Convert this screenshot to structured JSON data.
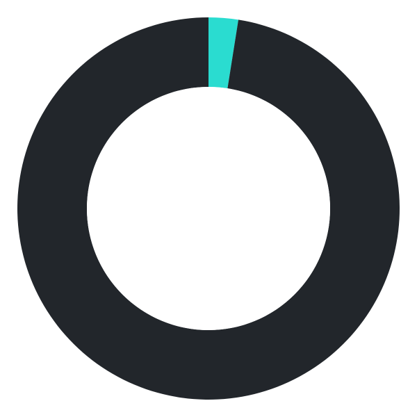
{
  "chart_data": {
    "type": "pie",
    "donut": true,
    "start_angle_deg": 0,
    "direction": "clockwise",
    "slices": [
      {
        "value": 2.5,
        "color": "#2adcd0"
      },
      {
        "value": 97.5,
        "color": "#22262b"
      }
    ],
    "background_color": "#ffffff",
    "title": "",
    "legend": "none"
  }
}
